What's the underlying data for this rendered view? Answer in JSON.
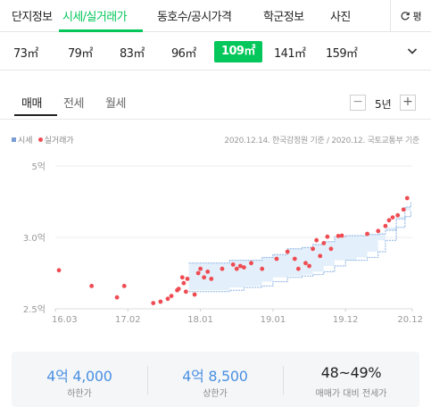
{
  "topnav": {
    "tabs": [
      "단지정보",
      "시세/실거래가",
      "동호수/공시가격",
      "학군정보",
      "사진"
    ],
    "active_index": 1,
    "side_button_label": "평"
  },
  "areas": {
    "items": [
      "73㎡",
      "79㎡",
      "83㎡",
      "96㎡",
      "109㎡",
      "141㎡",
      "159㎡"
    ],
    "selected_index": 4
  },
  "deal_tabs": {
    "items": [
      "매매",
      "전세",
      "월세"
    ],
    "active_index": 0,
    "period_label": "5년",
    "minus_label": "−",
    "plus_label": "+"
  },
  "legend": {
    "market_label": "시세",
    "actual_label": "실거래가",
    "source_text": "2020.12.14. 한국감정원 기준 / 2020.12. 국토교통부 기준"
  },
  "colors": {
    "accent": "#03c75a",
    "market_band_fill": "#e3effa",
    "market_band_stroke": "#8ab2e2",
    "actual_dot": "#ef4b52",
    "summary_value": "#4a90e2"
  },
  "chart_data": {
    "type": "scatter",
    "x_unit": "year",
    "y_unit": "억",
    "xlim": [
      2016.0,
      2020.92
    ],
    "ylim": [
      2.5,
      5.0
    ],
    "y_tick_values": [
      2.5,
      3.0,
      5.0
    ],
    "y_ticks": [
      "2.5억",
      "3.0억",
      "5억"
    ],
    "x_tick_values": [
      2016.0,
      2017.0,
      2018.0,
      2019.0,
      2020.0,
      2020.92
    ],
    "x_ticks": [
      "16.03",
      "17.02",
      "18.01",
      "19.01",
      "19.12",
      "20.12"
    ],
    "market_band": {
      "x": [
        2017.84,
        2018.4,
        2018.6,
        2018.85,
        2019.0,
        2019.2,
        2019.4,
        2019.55,
        2019.7,
        2019.85,
        2020.0,
        2020.15,
        2020.3,
        2020.45,
        2020.55,
        2020.7,
        2020.82,
        2020.9
      ],
      "upper": [
        2.82,
        2.84,
        2.84,
        2.86,
        2.88,
        2.92,
        2.93,
        2.95,
        2.97,
        3.02,
        3.05,
        3.05,
        3.08,
        3.1,
        3.2,
        3.52,
        3.85,
        3.98
      ],
      "lower": [
        2.62,
        2.63,
        2.65,
        2.66,
        2.69,
        2.72,
        2.73,
        2.74,
        2.76,
        2.8,
        2.84,
        2.84,
        2.86,
        2.9,
        2.98,
        3.28,
        3.58,
        3.75
      ]
    },
    "series": [
      {
        "name": "실거래가",
        "x": [
          2016.05,
          2016.5,
          2016.85,
          2016.95,
          2017.35,
          2017.45,
          2017.55,
          2017.6,
          2017.68,
          2017.7,
          2017.75,
          2017.77,
          2017.8,
          2017.82,
          2017.92,
          2017.97,
          2018.0,
          2018.05,
          2018.1,
          2018.15,
          2018.3,
          2018.45,
          2018.5,
          2018.55,
          2018.6,
          2018.7,
          2018.85,
          2019.05,
          2019.2,
          2019.3,
          2019.35,
          2019.45,
          2019.5,
          2019.55,
          2019.6,
          2019.65,
          2019.7,
          2019.75,
          2019.8,
          2019.9,
          2019.95,
          2020.3,
          2020.45,
          2020.55,
          2020.6,
          2020.65,
          2020.72,
          2020.8,
          2020.85
        ],
        "y": [
          2.77,
          2.66,
          2.58,
          2.66,
          2.54,
          2.55,
          2.57,
          2.59,
          2.63,
          2.64,
          2.72,
          2.68,
          2.62,
          2.71,
          2.6,
          2.75,
          2.78,
          2.72,
          2.76,
          2.71,
          2.78,
          2.81,
          2.78,
          2.8,
          2.79,
          2.82,
          2.78,
          2.85,
          2.9,
          2.85,
          2.78,
          2.82,
          2.8,
          2.92,
          2.98,
          2.87,
          2.96,
          3.02,
          2.92,
          3.04,
          3.05,
          3.1,
          3.18,
          3.32,
          3.48,
          3.56,
          3.62,
          3.78,
          4.1
        ]
      }
    ]
  },
  "summary": {
    "items": [
      {
        "value": "4억 4,000",
        "label": "하한가"
      },
      {
        "value": "4억 8,500",
        "label": "상한가"
      },
      {
        "value": "48~49%",
        "label": "매매가 대비 전세가"
      }
    ]
  }
}
